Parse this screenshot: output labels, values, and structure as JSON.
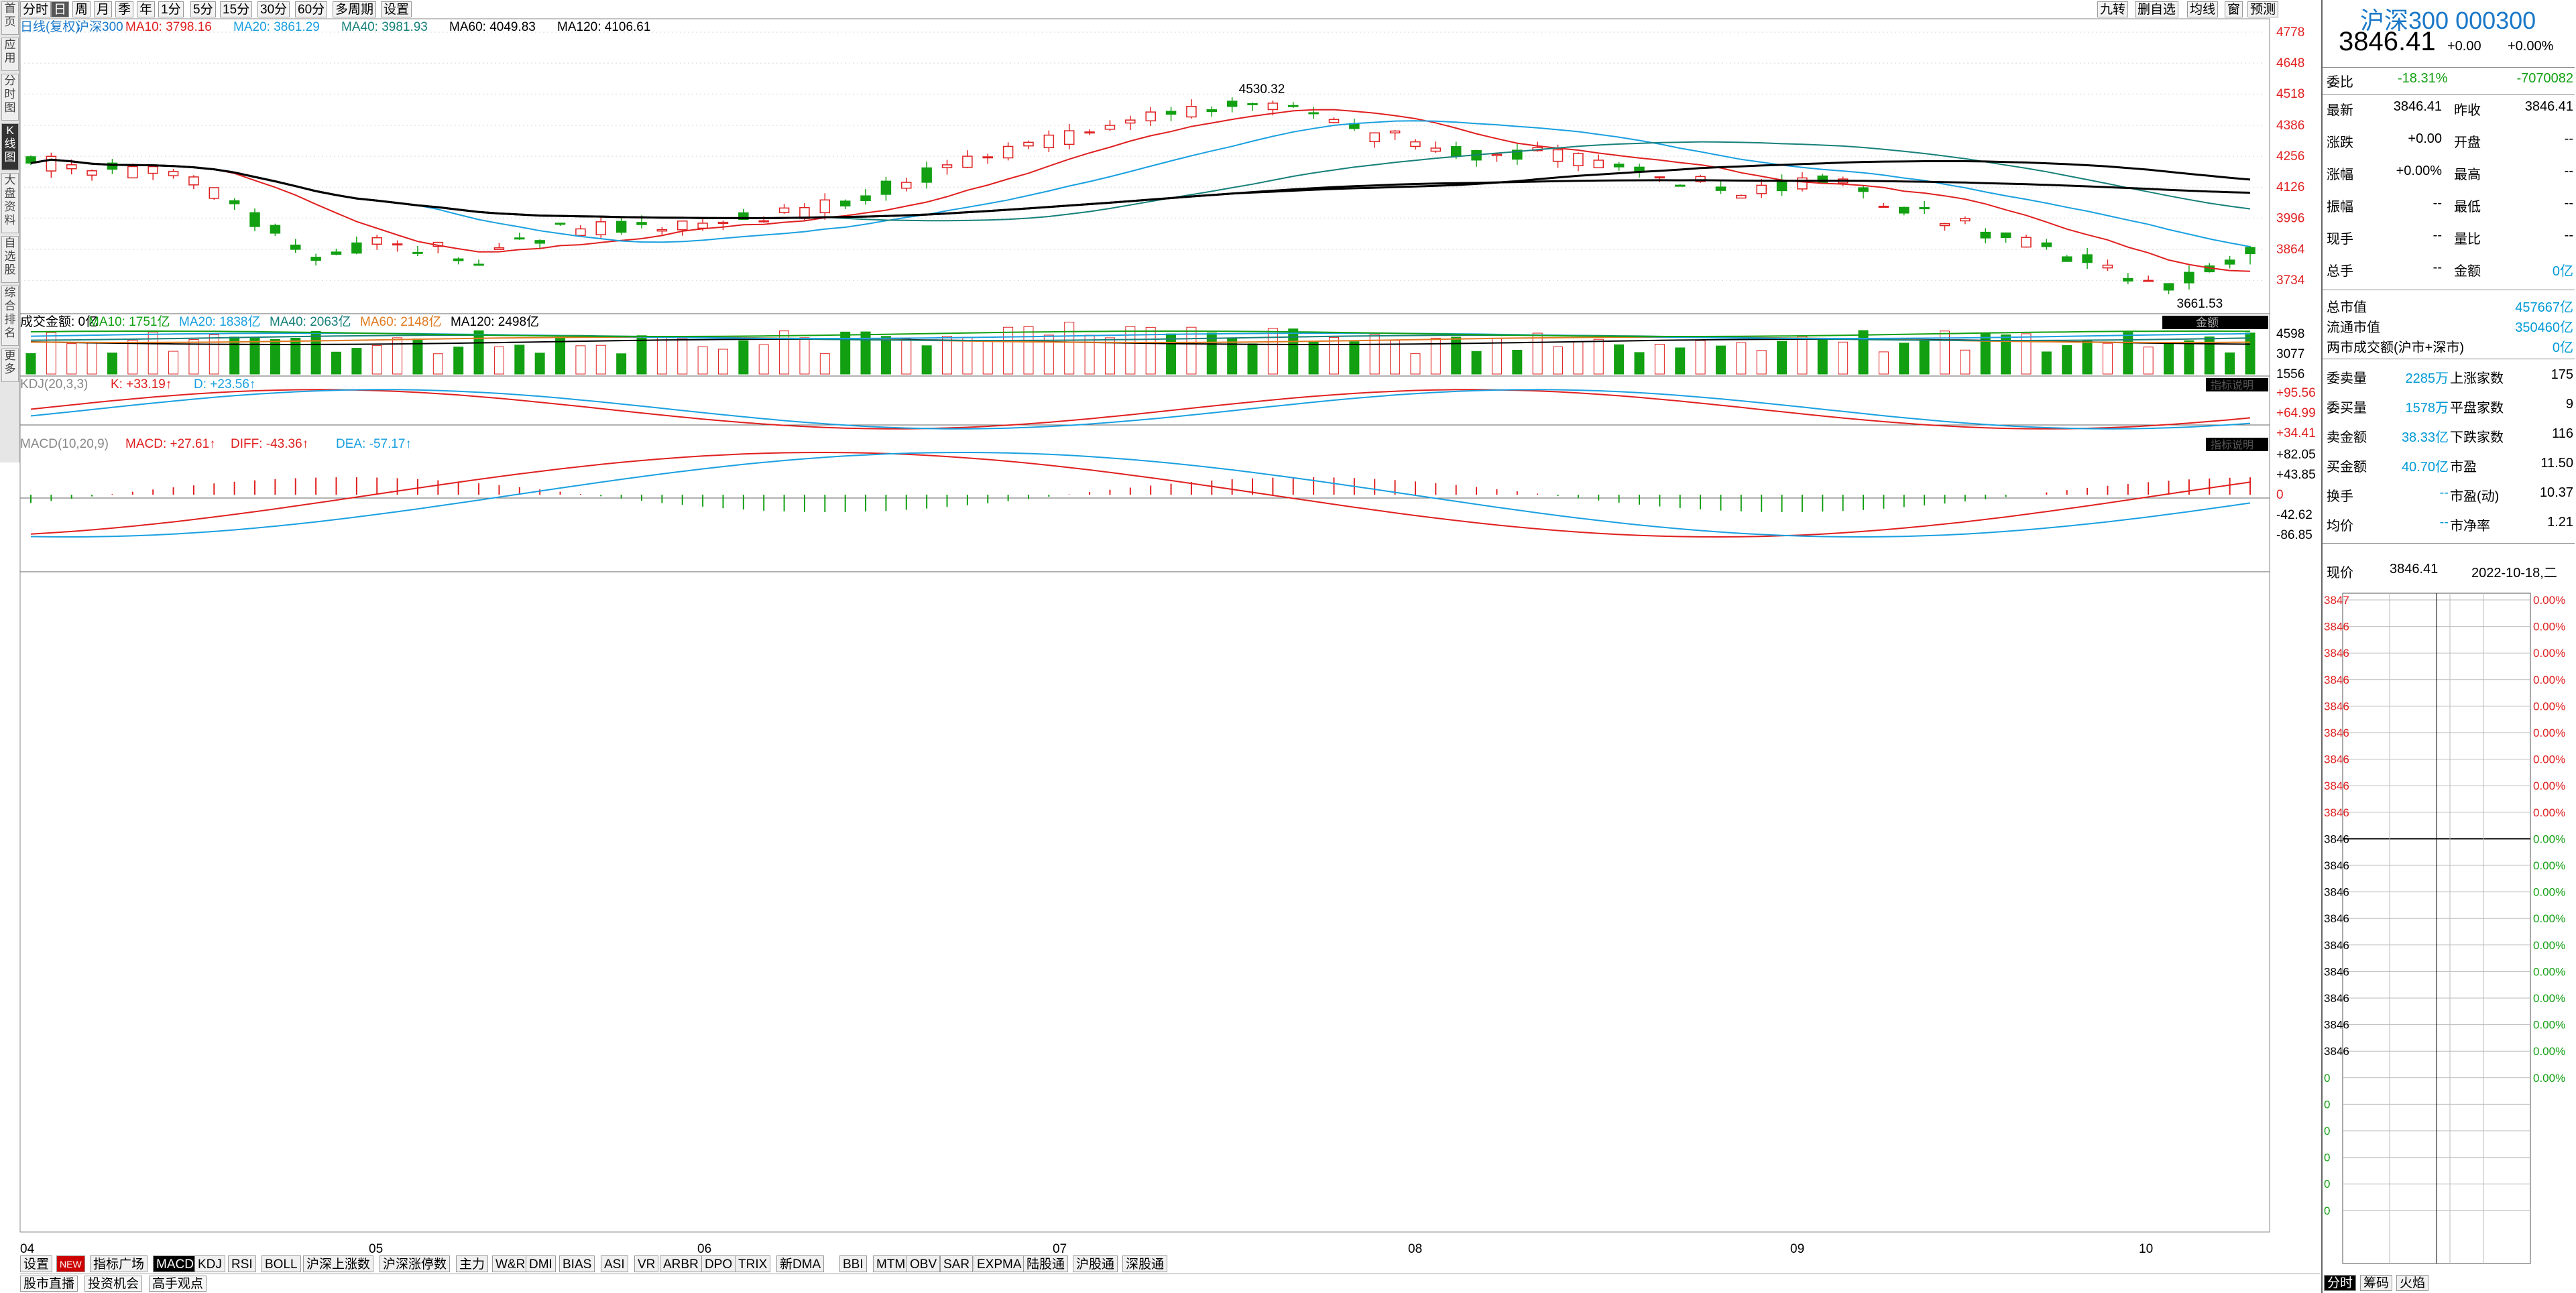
{
  "toolbar": {
    "periods": [
      "分时",
      "日",
      "周",
      "月",
      "季",
      "年",
      "1分",
      "5分",
      "15分",
      "30分",
      "60分",
      "多周期",
      "设置"
    ],
    "selected": "日",
    "right": [
      "九转",
      "删自选",
      "均线",
      "窗",
      "预测"
    ]
  },
  "left_tabs": [
    "首页",
    "应用",
    "分时图",
    "K线图",
    "大盘资料",
    "自选股",
    "综合排名",
    "更多"
  ],
  "left_selected": "K线图",
  "kline": {
    "legend": [
      {
        "t": "日线(复权)",
        "c": "#1a78c8"
      },
      {
        "t": "沪深300",
        "c": "#1a78c8"
      },
      {
        "t": "MA10: 3798.16",
        "c": "#e02020"
      },
      {
        "t": "MA20: 3861.29",
        "c": "#1aa0e0"
      },
      {
        "t": "MA40: 3981.93",
        "c": "#17807a"
      },
      {
        "t": "MA60: 4049.83",
        "c": "#000000"
      },
      {
        "t": "MA120: 4106.61",
        "c": "#000000"
      }
    ],
    "y_ticks": [
      "4778",
      "4648",
      "4518",
      "4386",
      "4256",
      "4126",
      "3996",
      "3864",
      "3734"
    ],
    "high_label": "4530.32",
    "low_label": "3661.53"
  },
  "volume": {
    "legend": [
      {
        "t": "成交金额: 0亿",
        "c": "#000000"
      },
      {
        "t": "MA10: 1751亿",
        "c": "#12a012"
      },
      {
        "t": "MA20: 1838亿",
        "c": "#1aa0e0"
      },
      {
        "t": "MA40: 2063亿",
        "c": "#17807a"
      },
      {
        "t": "MA60: 2148亿",
        "c": "#e07a20"
      },
      {
        "t": "MA120: 2498亿",
        "c": "#000000"
      }
    ],
    "button": "金额",
    "y_ticks": [
      "4598",
      "3077",
      "1556"
    ]
  },
  "kdj": {
    "legend": [
      {
        "t": "KDJ(20,3,3)",
        "c": "#888888"
      },
      {
        "t": "K: +33.19↑",
        "c": "#e02020"
      },
      {
        "t": "D: +23.56↑",
        "c": "#1aa0e0"
      }
    ],
    "y_ticks": [
      "+95.56",
      "+64.99",
      "+34.41"
    ],
    "button": "指标说明"
  },
  "macd": {
    "legend": [
      {
        "t": "MACD(10,20,9)",
        "c": "#888888"
      },
      {
        "t": "MACD: +27.61↑",
        "c": "#e02020"
      },
      {
        "t": "DIFF: -43.36↑",
        "c": "#e02020"
      },
      {
        "t": "DEA: -57.17↑",
        "c": "#1aa0e0"
      }
    ],
    "y_ticks": [
      "+82.05",
      "+43.85",
      "0",
      "-42.62",
      "-86.85"
    ],
    "button": "指标说明"
  },
  "x_labels": [
    "04",
    "05",
    "06",
    "07",
    "08",
    "09",
    "10"
  ],
  "indicator_tabs": [
    "设置",
    "NEW",
    "指标广场",
    "MACD",
    "KDJ",
    "RSI",
    "BOLL",
    "沪深上涨数",
    "沪深涨停数",
    "主力",
    "W&R",
    "DMI",
    "BIAS",
    "ASI",
    "VR",
    "ARBR",
    "DPO",
    "TRIX",
    "新DMA",
    "BBI",
    "MTM",
    "OBV",
    "SAR",
    "EXPMA",
    "陆股通",
    "沪股通",
    "深股通"
  ],
  "indicator_selected": "MACD",
  "bottom_links": [
    "股市直播",
    "投资机会",
    "高手观点"
  ],
  "right_panel": {
    "title": "沪深300 000300",
    "price": "3846.41",
    "change": "+0.00",
    "pct": "+0.00%",
    "weibi_label": "委比",
    "weibi": "-18.31%",
    "weicha": "-7070082",
    "rows": [
      [
        "最新",
        "3846.41",
        "昨收",
        "3846.41"
      ],
      [
        "涨跌",
        "+0.00",
        "开盘",
        "--"
      ],
      [
        "涨幅",
        "+0.00%",
        "最高",
        "--"
      ],
      [
        "振幅",
        "--",
        "最低",
        "--"
      ],
      [
        "现手",
        "--",
        "量比",
        "--"
      ],
      [
        "总手",
        "--",
        "金额",
        "0亿"
      ]
    ],
    "caps": [
      [
        "总市值",
        "457667亿"
      ],
      [
        "流通市值",
        "350460亿"
      ],
      [
        "两市成交额(沪市+深市)",
        "0亿"
      ]
    ],
    "stats": [
      [
        "委卖量",
        "2285万",
        "上涨家数",
        "175"
      ],
      [
        "委买量",
        "1578万",
        "平盘家数",
        "9"
      ],
      [
        "卖金额",
        "38.33亿",
        "下跌家数",
        "116"
      ],
      [
        "买金额",
        "40.70亿",
        "市盈",
        "11.50"
      ],
      [
        "换手",
        "--",
        "市盈(动)",
        "10.37"
      ],
      [
        "均价",
        "--",
        "市净率",
        "1.21"
      ]
    ],
    "now_label": "现价",
    "now_price": "3846.41",
    "date": "2022-10-18,二",
    "mini_left": [
      "3847",
      "3846",
      "3846",
      "3846",
      "3846",
      "3846",
      "3846",
      "3846",
      "3846",
      "3846",
      "3846",
      "3846",
      "3846",
      "3846",
      "3846",
      "3846",
      "3846",
      "3846",
      "0",
      "0",
      "0",
      "0",
      "0",
      "0"
    ],
    "mini_right": [
      "0.00%",
      "0.00%",
      "0.00%",
      "0.00%",
      "0.00%",
      "0.00%",
      "0.00%",
      "0.00%",
      "0.00%",
      "0.00%",
      "0.00%",
      "0.00%",
      "0.00%",
      "0.00%",
      "0.00%",
      "0.00%",
      "0.00%",
      "0.00%",
      "0.00%"
    ],
    "bottom_tabs": [
      "分时",
      "筹码",
      "火焰"
    ]
  },
  "colors": {
    "up": "#e02020",
    "down": "#12a012",
    "grid": "#d8d8d8"
  }
}
